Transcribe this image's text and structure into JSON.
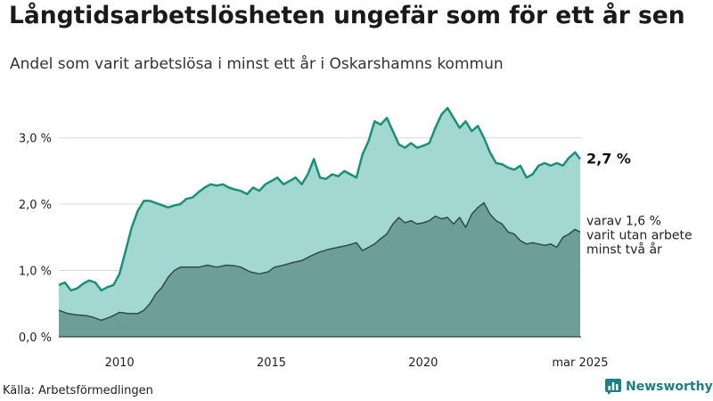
{
  "header": {
    "title": "Långtidsarbetslösheten ungefär som för ett år sen",
    "subtitle": "Andel som varit arbetslösa i minst ett år i Oskarshamns kommun"
  },
  "footer": {
    "source": "Källa: Arbetsförmedlingen",
    "brand": "Newsworthy"
  },
  "colors": {
    "total_fill": "#a3d7d1",
    "total_line": "#1b9079",
    "long_fill": "#6d9e97",
    "long_line": "#2f4c48",
    "grid": "#d9d9d9",
    "brand": "#1d7f86"
  },
  "icons": {
    "brand_logo": "bar-chart-badge-icon"
  },
  "chart_data": {
    "type": "area",
    "title": "Långtidsarbetslösheten ungefär som för ett år sen",
    "subtitle": "Andel som varit arbetslösa i minst ett år i Oskarshamns kommun",
    "x_start": "2008-01",
    "x_end": "2025-03",
    "xlim": [
      2008.0,
      2025.2
    ],
    "ylim": [
      0,
      3.6
    ],
    "grid": true,
    "y_ticks": [
      0,
      1,
      2,
      3
    ],
    "y_tick_labels": [
      "0,0 %",
      "1,0 %",
      "2,0 %",
      "3,0 %"
    ],
    "x_ticks": [
      2010,
      2015,
      2020,
      2025.17
    ],
    "x_tick_labels": [
      "2010",
      "2015",
      "2020",
      "mar 2025"
    ],
    "annotations": {
      "total_end": "2,7 %",
      "long_end": [
        "varav 1,6 %",
        "varit utan arbete",
        "minst två år"
      ]
    },
    "series": [
      {
        "key": "total",
        "points": [
          [
            2008.0,
            0.78
          ],
          [
            2008.2,
            0.82
          ],
          [
            2008.4,
            0.7
          ],
          [
            2008.6,
            0.73
          ],
          [
            2008.8,
            0.8
          ],
          [
            2009.0,
            0.85
          ],
          [
            2009.2,
            0.82
          ],
          [
            2009.4,
            0.7
          ],
          [
            2009.6,
            0.75
          ],
          [
            2009.8,
            0.78
          ],
          [
            2010.0,
            0.95
          ],
          [
            2010.2,
            1.3
          ],
          [
            2010.4,
            1.65
          ],
          [
            2010.6,
            1.9
          ],
          [
            2010.8,
            2.05
          ],
          [
            2011.0,
            2.05
          ],
          [
            2011.3,
            2.0
          ],
          [
            2011.6,
            1.95
          ],
          [
            2011.8,
            1.98
          ],
          [
            2012.0,
            2.0
          ],
          [
            2012.2,
            2.08
          ],
          [
            2012.4,
            2.1
          ],
          [
            2012.6,
            2.18
          ],
          [
            2012.8,
            2.25
          ],
          [
            2013.0,
            2.3
          ],
          [
            2013.2,
            2.28
          ],
          [
            2013.4,
            2.3
          ],
          [
            2013.6,
            2.25
          ],
          [
            2013.8,
            2.22
          ],
          [
            2014.0,
            2.2
          ],
          [
            2014.2,
            2.15
          ],
          [
            2014.4,
            2.25
          ],
          [
            2014.6,
            2.2
          ],
          [
            2014.8,
            2.3
          ],
          [
            2015.0,
            2.35
          ],
          [
            2015.2,
            2.4
          ],
          [
            2015.4,
            2.3
          ],
          [
            2015.6,
            2.35
          ],
          [
            2015.8,
            2.4
          ],
          [
            2016.0,
            2.3
          ],
          [
            2016.2,
            2.45
          ],
          [
            2016.4,
            2.68
          ],
          [
            2016.6,
            2.4
          ],
          [
            2016.8,
            2.38
          ],
          [
            2017.0,
            2.45
          ],
          [
            2017.2,
            2.42
          ],
          [
            2017.4,
            2.5
          ],
          [
            2017.6,
            2.45
          ],
          [
            2017.8,
            2.4
          ],
          [
            2018.0,
            2.75
          ],
          [
            2018.2,
            2.95
          ],
          [
            2018.4,
            3.25
          ],
          [
            2018.6,
            3.2
          ],
          [
            2018.8,
            3.3
          ],
          [
            2019.0,
            3.1
          ],
          [
            2019.2,
            2.9
          ],
          [
            2019.4,
            2.85
          ],
          [
            2019.6,
            2.92
          ],
          [
            2019.8,
            2.85
          ],
          [
            2020.0,
            2.88
          ],
          [
            2020.2,
            2.92
          ],
          [
            2020.4,
            3.15
          ],
          [
            2020.6,
            3.35
          ],
          [
            2020.8,
            3.45
          ],
          [
            2021.0,
            3.3
          ],
          [
            2021.2,
            3.15
          ],
          [
            2021.4,
            3.25
          ],
          [
            2021.6,
            3.1
          ],
          [
            2021.8,
            3.18
          ],
          [
            2022.0,
            3.0
          ],
          [
            2022.2,
            2.78
          ],
          [
            2022.4,
            2.62
          ],
          [
            2022.6,
            2.6
          ],
          [
            2022.8,
            2.55
          ],
          [
            2023.0,
            2.52
          ],
          [
            2023.2,
            2.58
          ],
          [
            2023.4,
            2.4
          ],
          [
            2023.6,
            2.45
          ],
          [
            2023.8,
            2.58
          ],
          [
            2024.0,
            2.62
          ],
          [
            2024.2,
            2.58
          ],
          [
            2024.4,
            2.62
          ],
          [
            2024.6,
            2.58
          ],
          [
            2024.8,
            2.7
          ],
          [
            2025.0,
            2.78
          ],
          [
            2025.17,
            2.68
          ]
        ]
      },
      {
        "key": "long",
        "points": [
          [
            2008.0,
            0.4
          ],
          [
            2008.3,
            0.35
          ],
          [
            2008.6,
            0.33
          ],
          [
            2008.9,
            0.32
          ],
          [
            2009.1,
            0.3
          ],
          [
            2009.4,
            0.25
          ],
          [
            2009.7,
            0.3
          ],
          [
            2010.0,
            0.37
          ],
          [
            2010.3,
            0.35
          ],
          [
            2010.6,
            0.35
          ],
          [
            2010.8,
            0.4
          ],
          [
            2011.0,
            0.5
          ],
          [
            2011.2,
            0.65
          ],
          [
            2011.4,
            0.75
          ],
          [
            2011.6,
            0.9
          ],
          [
            2011.8,
            1.0
          ],
          [
            2012.0,
            1.05
          ],
          [
            2012.3,
            1.05
          ],
          [
            2012.6,
            1.05
          ],
          [
            2012.9,
            1.08
          ],
          [
            2013.2,
            1.05
          ],
          [
            2013.5,
            1.08
          ],
          [
            2013.8,
            1.07
          ],
          [
            2014.0,
            1.05
          ],
          [
            2014.3,
            0.98
          ],
          [
            2014.6,
            0.95
          ],
          [
            2014.9,
            0.98
          ],
          [
            2015.1,
            1.05
          ],
          [
            2015.4,
            1.08
          ],
          [
            2015.7,
            1.12
          ],
          [
            2016.0,
            1.15
          ],
          [
            2016.3,
            1.22
          ],
          [
            2016.6,
            1.28
          ],
          [
            2016.9,
            1.32
          ],
          [
            2017.2,
            1.35
          ],
          [
            2017.5,
            1.38
          ],
          [
            2017.8,
            1.42
          ],
          [
            2018.0,
            1.3
          ],
          [
            2018.2,
            1.35
          ],
          [
            2018.4,
            1.4
          ],
          [
            2018.6,
            1.48
          ],
          [
            2018.8,
            1.55
          ],
          [
            2019.0,
            1.7
          ],
          [
            2019.2,
            1.8
          ],
          [
            2019.4,
            1.72
          ],
          [
            2019.6,
            1.75
          ],
          [
            2019.8,
            1.7
          ],
          [
            2020.0,
            1.72
          ],
          [
            2020.2,
            1.75
          ],
          [
            2020.4,
            1.82
          ],
          [
            2020.6,
            1.78
          ],
          [
            2020.8,
            1.8
          ],
          [
            2021.0,
            1.7
          ],
          [
            2021.2,
            1.8
          ],
          [
            2021.4,
            1.65
          ],
          [
            2021.6,
            1.85
          ],
          [
            2021.8,
            1.95
          ],
          [
            2022.0,
            2.02
          ],
          [
            2022.2,
            1.85
          ],
          [
            2022.4,
            1.75
          ],
          [
            2022.6,
            1.7
          ],
          [
            2022.8,
            1.58
          ],
          [
            2023.0,
            1.55
          ],
          [
            2023.2,
            1.45
          ],
          [
            2023.4,
            1.4
          ],
          [
            2023.6,
            1.42
          ],
          [
            2023.8,
            1.4
          ],
          [
            2024.0,
            1.38
          ],
          [
            2024.2,
            1.4
          ],
          [
            2024.4,
            1.35
          ],
          [
            2024.6,
            1.5
          ],
          [
            2024.8,
            1.55
          ],
          [
            2025.0,
            1.62
          ],
          [
            2025.17,
            1.58
          ]
        ]
      }
    ]
  }
}
